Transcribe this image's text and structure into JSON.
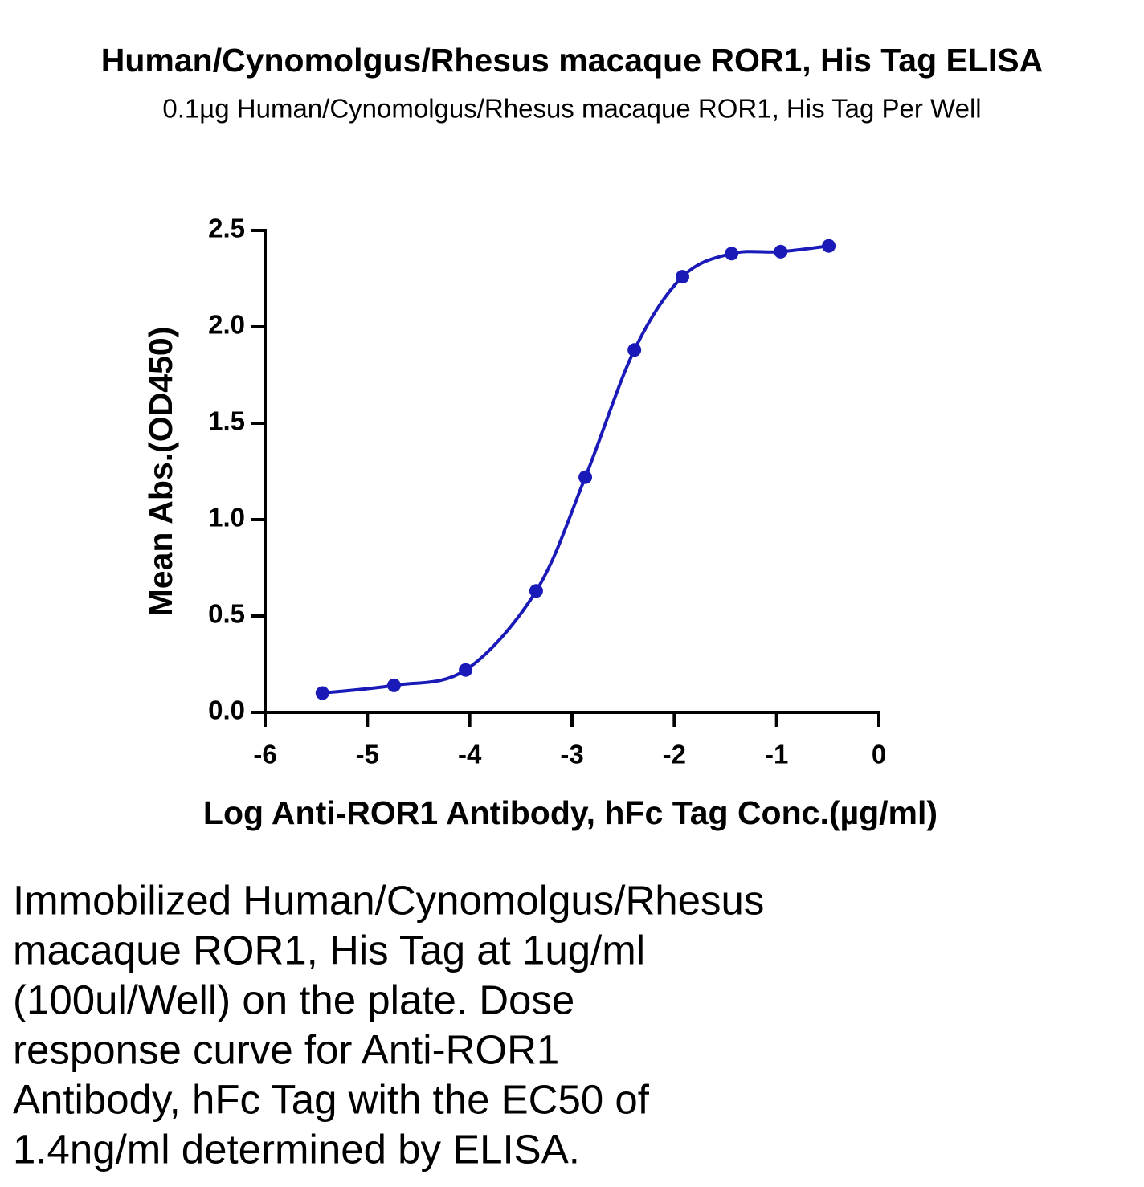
{
  "chart_data": {
    "type": "scatter",
    "title": "Human/Cynomolgus/Rhesus macaque ROR1, His Tag ELISA",
    "subtitle": "0.1µg Human/Cynomolgus/Rhesus macaque ROR1, His Tag Per Well",
    "x_label": "Log Anti-ROR1 Antibody, hFc Tag Conc.(µg/ml)",
    "y_label": "Mean Abs.(OD450)",
    "xlim": [
      -6,
      0
    ],
    "xticks": [
      -6,
      -5,
      -4,
      -3,
      -2,
      -1,
      0
    ],
    "ylim": [
      0,
      2.5
    ],
    "yticks": [
      {
        "value": 0,
        "label": "0.0"
      },
      0.5,
      {
        "value": 1,
        "label": "1.0"
      },
      1.5,
      {
        "value": 2,
        "label": "2.0"
      },
      2.5
    ],
    "series": [
      {
        "color": "#1a1ab8",
        "x": [
          -5.44,
          -4.74,
          -4.04,
          -3.35,
          -2.87,
          -2.39,
          -1.92,
          -1.44,
          -0.96,
          -0.49
        ],
        "values": [
          0.1,
          0.14,
          0.22,
          0.63,
          1.22,
          1.88,
          2.26,
          2.38,
          2.39,
          2.42
        ]
      }
    ],
    "curve": true
  },
  "description": {
    "lines": [
      "Immobilized Human/Cynomolgus/Rhesus",
      "macaque ROR1, His Tag at 1ug/ml",
      "(100ul/Well) on the plate. Dose",
      "response curve for Anti-ROR1",
      "Antibody, hFc Tag with the EC50 of",
      "1.4ng/ml determined by ELISA."
    ]
  }
}
